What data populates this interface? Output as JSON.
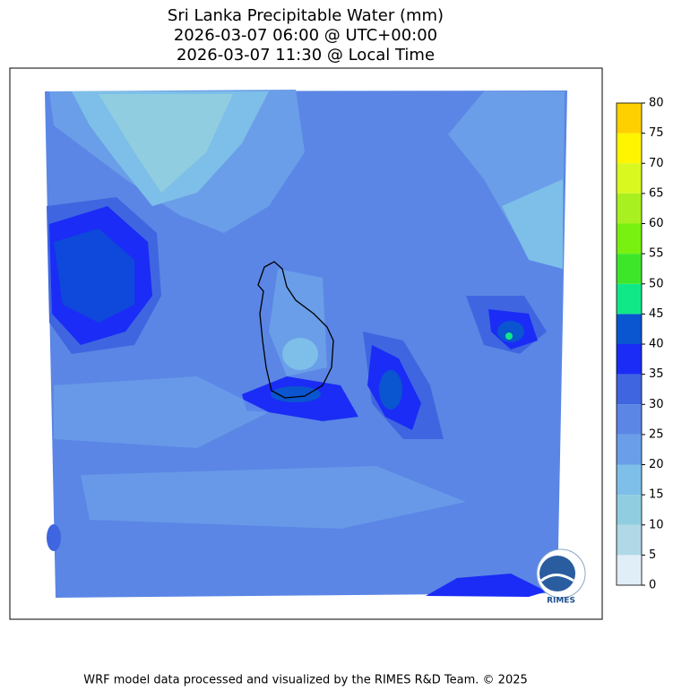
{
  "title": [
    "Sri Lanka Precipitable Water (mm)",
    "2026-03-07 06:00 @ UTC+00:00",
    "2026-03-07 11:30 @ Local Time"
  ],
  "colorbar": {
    "lim": [
      0,
      80
    ],
    "ticks": [
      0,
      5,
      10,
      15,
      20,
      25,
      30,
      35,
      40,
      45,
      50,
      55,
      60,
      65,
      70,
      75,
      80
    ],
    "colors": [
      "#e0eef8",
      "#b0d8e6",
      "#90cde0",
      "#7dbfe8",
      "#6a9ee8",
      "#5b86e5",
      "#3f66e0",
      "#1a2cf5",
      "#0a55d0",
      "#10e888",
      "#3ee62a",
      "#78f010",
      "#a8f020",
      "#d8f820",
      "#fff500",
      "#ffd000"
    ]
  },
  "logo": "RIMES",
  "footer": "WRF model data processed and visualized by the RIMES R&D Team. © 2025"
}
